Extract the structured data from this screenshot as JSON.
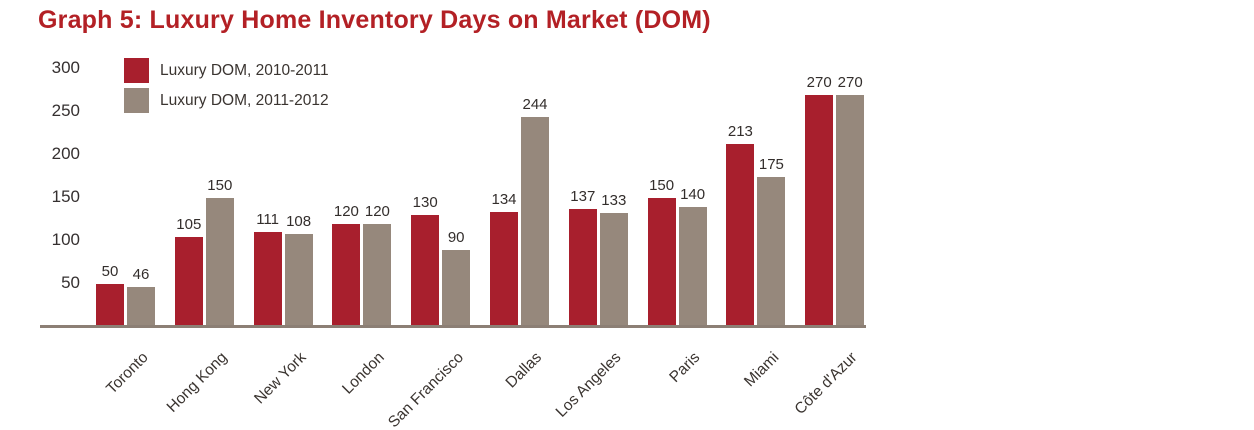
{
  "title": "Graph 5: Luxury Home Inventory Days on Market (DOM)",
  "colors": {
    "title": "#b32025",
    "series_2010_2011": "#a81f2d",
    "series_2011_2012": "#96887c",
    "axis_line": "#8c7f75",
    "label_text": "#3a3430"
  },
  "chart_data": {
    "type": "bar",
    "title": "Graph 5: Luxury Home Inventory Days on Market (DOM)",
    "categories": [
      "Toronto",
      "Hong Kong",
      "New York",
      "London",
      "San Francisco",
      "Dallas",
      "Los Angeles",
      "Paris",
      "Miami",
      "Côte d'Azur"
    ],
    "series": [
      {
        "name": "Luxury DOM, 2010-2011",
        "color": "#a81f2d",
        "values": [
          50,
          105,
          111,
          120,
          130,
          134,
          137,
          150,
          213,
          270
        ]
      },
      {
        "name": "Luxury DOM, 2011-2012",
        "color": "#96887c",
        "values": [
          46,
          150,
          108,
          120,
          90,
          244,
          133,
          140,
          175,
          270
        ]
      }
    ],
    "y_ticks": [
      300,
      250,
      200,
      150,
      100,
      50
    ],
    "ylim": [
      0,
      300
    ],
    "xlabel": "",
    "ylabel": "",
    "grid": false,
    "legend_position": "top-left",
    "value_labels": true
  }
}
